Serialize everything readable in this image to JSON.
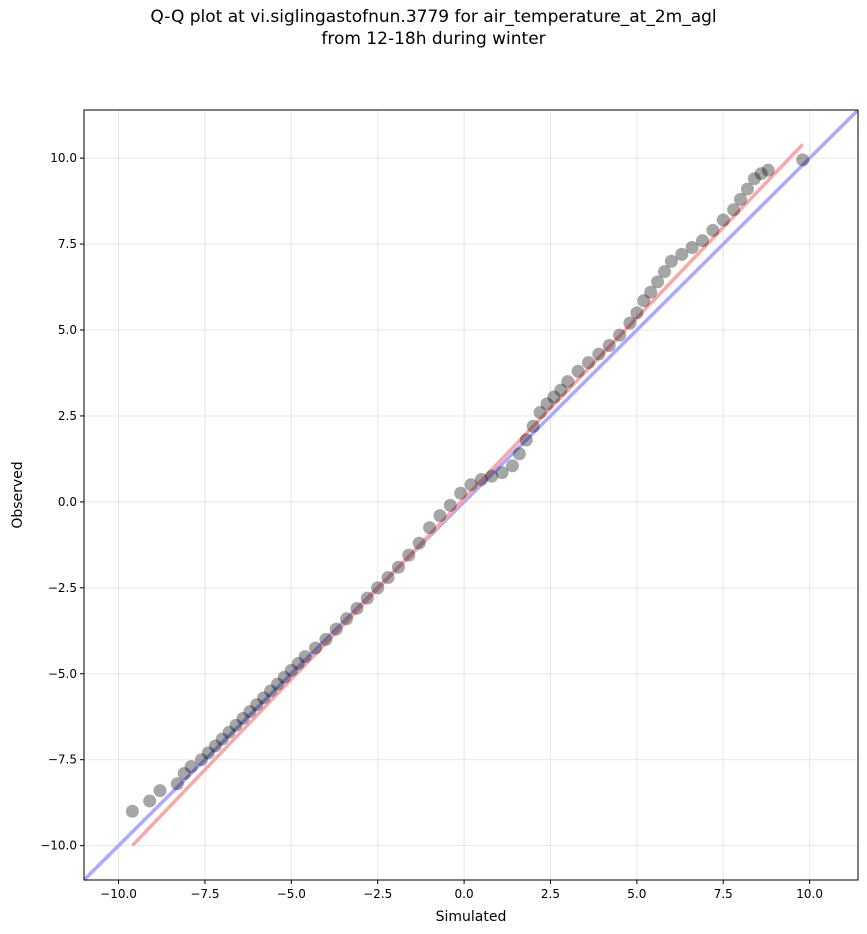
{
  "title_line1": "Q-Q plot at vi.siglingastofnun.3779 for air_temperature_at_2m_agl",
  "title_line2": "from 12-18h during winter",
  "chart_data": {
    "type": "scatter",
    "xlabel": "Simulated",
    "ylabel": "Observed",
    "xlim": [
      -11.0,
      11.4
    ],
    "ylim": [
      -11.0,
      11.4
    ],
    "xticks": [
      -10.0,
      -7.5,
      -5.0,
      -2.5,
      0.0,
      2.5,
      5.0,
      7.5,
      10.0
    ],
    "yticks": [
      -10.0,
      -7.5,
      -5.0,
      -2.5,
      0.0,
      2.5,
      5.0,
      7.5,
      10.0
    ],
    "xtick_labels": [
      "−10.0",
      "−7.5",
      "−5.0",
      "−2.5",
      "0.0",
      "2.5",
      "5.0",
      "7.5",
      "10.0"
    ],
    "ytick_labels": [
      "−10.0",
      "−7.5",
      "−5.0",
      "−2.5",
      "0.0",
      "2.5",
      "5.0",
      "7.5",
      "10.0"
    ],
    "grid": true,
    "quantile_points": {
      "x": [
        -9.6,
        -9.1,
        -8.8,
        -8.3,
        -8.1,
        -7.9,
        -7.6,
        -7.4,
        -7.2,
        -7.0,
        -6.8,
        -6.6,
        -6.4,
        -6.2,
        -6.0,
        -5.8,
        -5.6,
        -5.4,
        -5.2,
        -5.0,
        -4.8,
        -4.6,
        -4.3,
        -4.0,
        -3.7,
        -3.4,
        -3.1,
        -2.8,
        -2.5,
        -2.2,
        -1.9,
        -1.6,
        -1.3,
        -1.0,
        -0.7,
        -0.4,
        -0.1,
        0.2,
        0.5,
        0.8,
        1.1,
        1.4,
        1.6,
        1.8,
        2.0,
        2.2,
        2.4,
        2.6,
        2.8,
        3.0,
        3.3,
        3.6,
        3.9,
        4.2,
        4.5,
        4.8,
        5.0,
        5.2,
        5.4,
        5.6,
        5.8,
        6.0,
        6.3,
        6.6,
        6.9,
        7.2,
        7.5,
        7.8,
        8.0,
        8.2,
        8.4,
        8.6,
        8.8,
        9.8
      ],
      "y": [
        -9.0,
        -8.7,
        -8.4,
        -8.2,
        -7.9,
        -7.7,
        -7.5,
        -7.3,
        -7.1,
        -6.9,
        -6.7,
        -6.5,
        -6.3,
        -6.1,
        -5.9,
        -5.7,
        -5.5,
        -5.3,
        -5.1,
        -4.9,
        -4.7,
        -4.5,
        -4.25,
        -4.0,
        -3.7,
        -3.4,
        -3.1,
        -2.8,
        -2.5,
        -2.2,
        -1.9,
        -1.55,
        -1.2,
        -0.75,
        -0.4,
        -0.1,
        0.25,
        0.5,
        0.65,
        0.75,
        0.85,
        1.05,
        1.4,
        1.8,
        2.2,
        2.6,
        2.85,
        3.05,
        3.25,
        3.5,
        3.8,
        4.05,
        4.3,
        4.55,
        4.85,
        5.2,
        5.5,
        5.85,
        6.1,
        6.4,
        6.7,
        7.0,
        7.2,
        7.4,
        7.6,
        7.9,
        8.2,
        8.5,
        8.8,
        9.1,
        9.4,
        9.55,
        9.65,
        9.95
      ]
    },
    "reference_line": {
      "color": "#aaaaff",
      "label": "1:1"
    },
    "fit_line": {
      "x": [
        -9.6,
        9.8
      ],
      "y": [
        -10.0,
        10.4
      ],
      "color": "#f7a8a8"
    },
    "point_color": "#000000"
  }
}
